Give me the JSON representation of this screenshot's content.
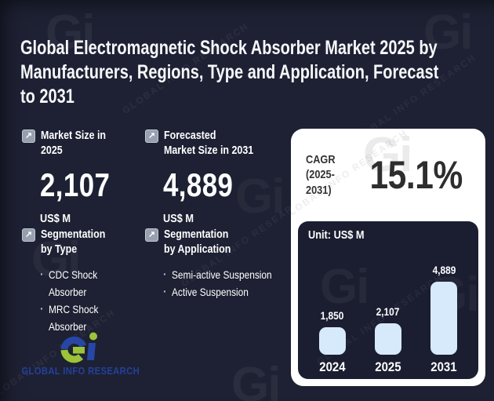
{
  "title": "Global Electromagnetic Shock Absorber Market 2025 by\nManufacturers, Regions, Type and Application, Forecast\nto 2031",
  "stats": [
    {
      "label": "Market Size in\n2025",
      "value": "2,107",
      "unit": "US$ M"
    },
    {
      "label": "Forecasted\nMarket Size in 2031",
      "value": "4,889",
      "unit": "US$ M"
    }
  ],
  "segmentations": [
    {
      "label": "Segmentation\nby Type",
      "items": [
        "CDC Shock Absorber",
        "MRC Shock Absorber"
      ]
    },
    {
      "label": "Segmentation\nby Application",
      "items": [
        "Semi-active Suspension",
        "Active Suspension"
      ]
    }
  ],
  "cagr": {
    "label": "CAGR\n(2025-\n2031)",
    "value": "15.1%"
  },
  "chart_data": {
    "type": "bar",
    "title": "Unit: US$ M",
    "categories": [
      "2024",
      "2025",
      "2031"
    ],
    "values": [
      1850,
      2107,
      4889
    ],
    "value_labels": [
      "1,850",
      "2,107",
      "4,889"
    ],
    "xlabel": "",
    "ylabel": "US$ M",
    "ylim": [
      0,
      4889
    ],
    "grid": false,
    "legend": "none",
    "bar_color": "#d7eafb"
  },
  "logo": {
    "text": "GLOBAL INFO RESEARCH"
  },
  "watermark": {
    "mark": "Gi",
    "text": "GLOBAL INFO RESEARCH"
  },
  "icons": {
    "stat_marker": "↗"
  },
  "colors": {
    "background": "#1d2133",
    "panel": "#ffffff",
    "chart_panel": "#1a1e30",
    "bar": "#d7eafb",
    "text_light": "#ffffff",
    "text_dark": "#2e2e2e",
    "logo_blue": "#24409a",
    "logo_green": "#9dc339"
  }
}
